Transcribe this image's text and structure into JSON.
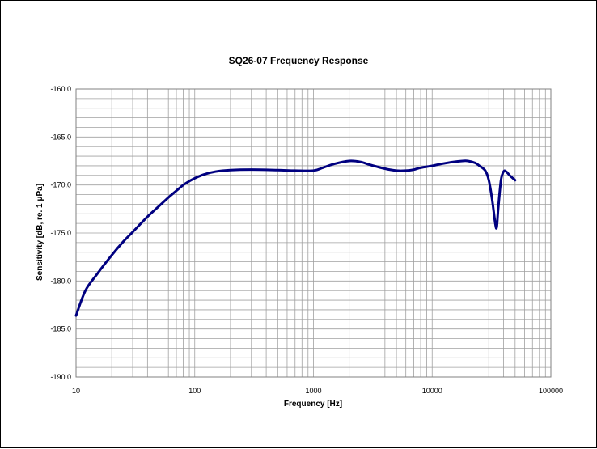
{
  "chart_data": {
    "type": "line",
    "title": "SQ26-07 Frequency Response",
    "xlabel": "Frequency [Hz]",
    "ylabel": "Sensitivity [dB, re. 1 μPa]",
    "x_scale": "log",
    "xlim": [
      10,
      100000
    ],
    "ylim": [
      -190,
      -160
    ],
    "x_ticks": [
      "10",
      "100",
      "1000",
      "10000",
      "100000"
    ],
    "y_ticks": [
      "-160.0",
      "-165.0",
      "-170.0",
      "-175.0",
      "-180.0",
      "-185.0",
      "-190.0"
    ],
    "grid": true,
    "legend": "none",
    "series": [
      {
        "color": "#000080",
        "x": [
          10,
          12,
          15,
          20,
          25,
          30,
          40,
          50,
          60,
          70,
          80,
          90,
          100,
          120,
          150,
          200,
          300,
          500,
          700,
          1000,
          1200,
          1500,
          2000,
          2500,
          3000,
          4000,
          5000,
          6000,
          7000,
          8000,
          10000,
          12000,
          15000,
          18000,
          20000,
          23000,
          25000,
          28000,
          30000,
          32000,
          34000,
          35000,
          36000,
          38000,
          40000,
          42000,
          45000,
          50000
        ],
        "y": [
          -183.6,
          -181.0,
          -179.3,
          -177.3,
          -175.9,
          -174.9,
          -173.3,
          -172.2,
          -171.3,
          -170.6,
          -170.0,
          -169.6,
          -169.3,
          -168.9,
          -168.6,
          -168.45,
          -168.4,
          -168.45,
          -168.5,
          -168.5,
          -168.2,
          -167.8,
          -167.5,
          -167.6,
          -167.9,
          -168.3,
          -168.5,
          -168.5,
          -168.4,
          -168.2,
          -168.0,
          -167.8,
          -167.6,
          -167.5,
          -167.5,
          -167.7,
          -168.0,
          -168.5,
          -169.5,
          -171.5,
          -174.0,
          -174.4,
          -172.5,
          -169.5,
          -168.6,
          -168.6,
          -169.0,
          -169.5
        ]
      }
    ]
  },
  "colors": {
    "line": "#000080",
    "plot_background": "#ffffff",
    "grid": "#a0a0a0"
  }
}
